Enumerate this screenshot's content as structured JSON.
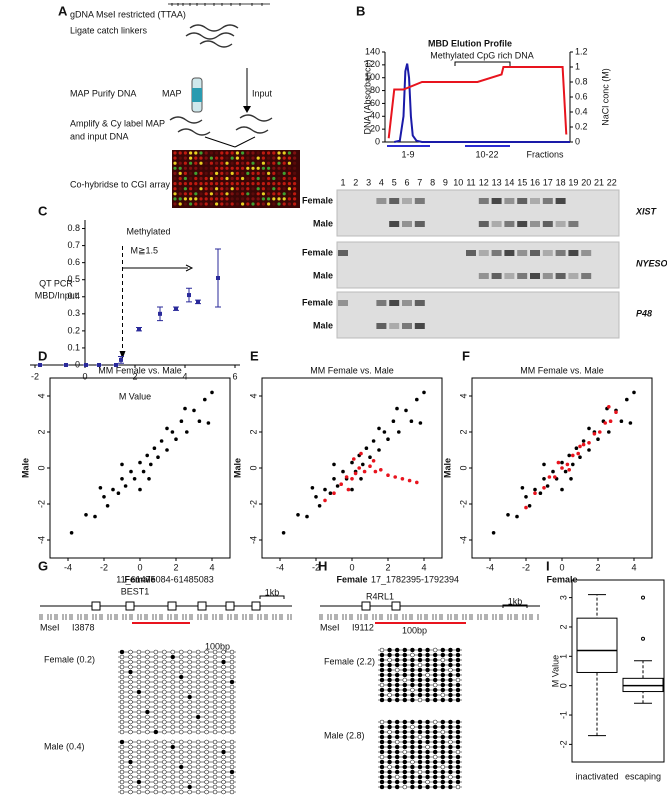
{
  "panel_labels": [
    "A",
    "B",
    "C",
    "D",
    "E",
    "F",
    "G",
    "H",
    "I"
  ],
  "workflow": {
    "digest": "gDNA MseI restricted (TTAA)",
    "ligate": "Ligate catch linkers",
    "purify": "MAP Purify DNA",
    "map": "MAP",
    "input": "Input",
    "amplify": [
      "Amplify & Cy label MAP",
      "and input DNA"
    ],
    "hybridize": "Co-hybridse to CGI array"
  },
  "gel": {
    "lanes": [
      1,
      2,
      3,
      4,
      5,
      6,
      7,
      8,
      9,
      10,
      11,
      12,
      13,
      14,
      15,
      16,
      17,
      18,
      19,
      20,
      21,
      22
    ],
    "genes": [
      {
        "name": "XIST",
        "rows": [
          "Female",
          "Male"
        ]
      },
      {
        "name": "NYESO",
        "rows": [
          "Female",
          "Male"
        ]
      },
      {
        "name": "P48",
        "rows": [
          "Female",
          "Male"
        ]
      }
    ]
  },
  "bisulfite": {
    "G": {
      "locus": "11_61475084-61485083",
      "gene": "BEST1",
      "scale": "1kb",
      "site_label": "MseI",
      "site": "I3878",
      "amplicon_scale": "100bp",
      "groups": [
        "Female (0.2)",
        "Male (0.4)"
      ]
    },
    "H": {
      "locus": "17_1782395-1792394",
      "gene": "R4RL1",
      "scale": "1kb",
      "site_label": "MseI",
      "site": "I9112",
      "amplicon_scale": "100bp",
      "groups": [
        "Female (2.2)",
        "Male (2.8)"
      ]
    }
  },
  "chart_data": [
    {
      "type": "line",
      "title": "MBD Elution Profile",
      "ylabel": "DNA (Absorbance)",
      "y2label": "NaCl conc (M)",
      "xlim": [
        0,
        100
      ],
      "ylim": [
        0,
        140
      ],
      "yticks": [
        0,
        20,
        40,
        60,
        80,
        100,
        120,
        140
      ],
      "y2lim": [
        0,
        1.2
      ],
      "y2ticks": [
        0,
        0.2,
        0.4,
        0.6,
        0.8,
        1,
        1.2
      ],
      "series": [
        {
          "color": "#1a1aa8",
          "x": [
            5,
            8,
            10,
            11,
            12,
            13,
            14,
            15,
            17,
            20,
            100
          ],
          "values": [
            0,
            2,
            40,
            110,
            122,
            100,
            40,
            10,
            2,
            0,
            0
          ]
        },
        {
          "color": "#e8141e",
          "axis": "y2",
          "x": [
            2,
            5,
            10,
            20,
            50,
            63,
            64,
            96,
            98
          ],
          "values": [
            0.05,
            0.7,
            0.7,
            0.8,
            0.8,
            0.9,
            1.0,
            1.0,
            0.1
          ]
        }
      ],
      "annotation": "Methylated CpG rich DNA",
      "fraction_groups": [
        "1-9",
        "10-22"
      ],
      "fractions_label": "Fractions"
    },
    {
      "type": "errorscatter",
      "xlabel": "M Value",
      "ylabel": [
        "QT PCR",
        "MBD/Input"
      ],
      "xlim": [
        -2.2,
        6.2
      ],
      "xticks": [
        -2,
        0,
        2,
        4,
        6
      ],
      "ylim": [
        0,
        0.85
      ],
      "yticks": [
        0,
        0.1,
        0.2,
        0.3,
        0.4,
        0.5,
        0.6,
        0.7,
        0.8
      ],
      "color": "#2a2a9a",
      "x": [
        -1.8,
        -0.76,
        0.04,
        0.56,
        1.24,
        1.44,
        2.16,
        3.0,
        3.64,
        4.16,
        4.52,
        5.32
      ],
      "values": [
        0,
        0,
        0,
        0,
        0,
        0.03,
        0.21,
        0.3,
        0.33,
        0.41,
        0.37,
        0.51
      ],
      "errors": [
        0,
        0,
        0,
        0,
        0,
        0.02,
        0.01,
        0.04,
        0.01,
        0.04,
        0.01,
        0.17
      ],
      "annotation": "Methylated",
      "threshold": {
        "value": 1.5,
        "label": "M≧1.5"
      }
    },
    {
      "type": "scatter",
      "title": "MM Female vs. Male",
      "xlabel": "Female",
      "ylabel": "Male",
      "xlim": [
        -5,
        5
      ],
      "ylim": [
        -5,
        5
      ],
      "xticks": [
        -4,
        -2,
        0,
        2,
        4
      ],
      "yticks": [
        -4,
        -2,
        0,
        2,
        4
      ],
      "series": [
        {
          "color": "#000000",
          "x": [
            -3.8,
            -3,
            -2.5,
            -2,
            -1.8,
            -1.5,
            -1.2,
            -1,
            -0.8,
            -0.5,
            -0.3,
            0,
            0.2,
            0.4,
            0.6,
            0.8,
            1,
            1.2,
            1.5,
            1.8,
            2,
            2.3,
            2.6,
            3,
            3.3,
            3.6,
            4,
            -1,
            0.5,
            1.5,
            2.5,
            0,
            -2.2,
            3.8
          ],
          "values": [
            -3.6,
            -2.6,
            -2.7,
            -1.6,
            -2.1,
            -1.2,
            -1.4,
            -0.6,
            -1,
            -0.2,
            -0.6,
            0.3,
            -0.2,
            0.7,
            0.2,
            1.1,
            0.6,
            1.5,
            1.0,
            2.0,
            1.6,
            2.6,
            2.0,
            3.2,
            2.6,
            3.8,
            4.2,
            0.2,
            -0.6,
            2.2,
            3.3,
            -1.2,
            -1.1,
            2.5
          ]
        }
      ]
    },
    {
      "type": "scatter",
      "title": "MM Female vs. Male",
      "xlabel": "Female",
      "ylabel": "Male",
      "xlim": [
        -5,
        5
      ],
      "ylim": [
        -5,
        5
      ],
      "xticks": [
        -4,
        -2,
        0,
        2,
        4
      ],
      "yticks": [
        -4,
        -2,
        0,
        2,
        4
      ],
      "series": [
        {
          "color": "#000000",
          "x": [
            -3.8,
            -3,
            -2.5,
            -2,
            -1.8,
            -1.5,
            -1.2,
            -1,
            -0.8,
            -0.5,
            -0.3,
            0,
            0.2,
            0.4,
            0.6,
            0.8,
            1,
            1.2,
            1.5,
            1.8,
            2,
            2.3,
            2.6,
            3,
            3.3,
            3.6,
            4,
            -1,
            0.5,
            1.5,
            2.5,
            0,
            -2.2,
            3.8
          ],
          "values": [
            -3.6,
            -2.6,
            -2.7,
            -1.6,
            -2.1,
            -1.2,
            -1.4,
            -0.6,
            -1,
            -0.2,
            -0.6,
            0.3,
            -0.2,
            0.7,
            0.2,
            1.1,
            0.6,
            1.5,
            1.0,
            2.0,
            1.6,
            2.6,
            2.0,
            3.2,
            2.6,
            3.8,
            4.2,
            0.2,
            -0.6,
            2.2,
            3.3,
            -1.2,
            -1.1,
            2.5
          ]
        },
        {
          "color": "#e8141e",
          "x": [
            -1.5,
            -1,
            -0.6,
            -0.3,
            0,
            0.2,
            0.4,
            0.7,
            1,
            1.3,
            1.6,
            2,
            2.4,
            2.8,
            3.2,
            3.6,
            0.1,
            -0.2,
            0.5,
            1.2
          ],
          "values": [
            -1.8,
            -1.4,
            -0.9,
            -0.5,
            -0.6,
            -0.3,
            0,
            -0.2,
            0.1,
            -0.2,
            -0.1,
            -0.4,
            -0.5,
            -0.6,
            -0.7,
            -0.8,
            0.5,
            -1.2,
            0.8,
            0.4
          ]
        }
      ]
    },
    {
      "type": "scatter",
      "title": "MM Female vs. Male",
      "xlabel": "Female",
      "ylabel": "Male",
      "xlim": [
        -5,
        5
      ],
      "ylim": [
        -5,
        5
      ],
      "xticks": [
        -4,
        -2,
        0,
        2,
        4
      ],
      "yticks": [
        -4,
        -2,
        0,
        2,
        4
      ],
      "series": [
        {
          "color": "#000000",
          "x": [
            -3.8,
            -3,
            -2.5,
            -2,
            -1.8,
            -1.5,
            -1.2,
            -1,
            -0.8,
            -0.5,
            -0.3,
            0,
            0.2,
            0.4,
            0.6,
            0.8,
            1,
            1.2,
            1.5,
            1.8,
            2,
            2.3,
            2.6,
            3,
            3.3,
            3.6,
            4,
            -1,
            0.5,
            1.5,
            2.5,
            0,
            -2.2,
            3.8
          ],
          "values": [
            -3.6,
            -2.6,
            -2.7,
            -1.6,
            -2.1,
            -1.2,
            -1.4,
            -0.6,
            -1,
            -0.2,
            -0.6,
            0.3,
            -0.2,
            0.7,
            0.2,
            1.1,
            0.6,
            1.5,
            1.0,
            2.0,
            1.6,
            2.6,
            2.0,
            3.2,
            2.6,
            3.8,
            4.2,
            0.2,
            -0.6,
            2.2,
            3.3,
            -1.2,
            -1.1,
            2.5
          ]
        },
        {
          "color": "#e8141e",
          "x": [
            -2,
            -1.5,
            -1,
            -0.7,
            -0.4,
            0,
            0.3,
            0.6,
            0.9,
            1.2,
            1.5,
            1.8,
            2.1,
            2.4,
            2.7,
            3,
            -0.2,
            0.4,
            1,
            2.6
          ],
          "values": [
            -2.2,
            -1.4,
            -1.1,
            -0.5,
            -0.5,
            0,
            0.2,
            0.7,
            0.8,
            1.3,
            1.4,
            1.9,
            2.0,
            2.5,
            2.6,
            3.1,
            0.3,
            -0.1,
            1.2,
            3.4
          ]
        }
      ]
    },
    {
      "type": "box",
      "ylabel": "M Value",
      "categories": [
        "inactivated",
        "escaping"
      ],
      "ylim": [
        -2.6,
        3.6
      ],
      "yticks": [
        -2,
        -1,
        0,
        1,
        2,
        3
      ],
      "boxes": [
        {
          "min": -1.7,
          "q1": 0.45,
          "median": 1.2,
          "q3": 2.3,
          "max": 3.1,
          "outliers": []
        },
        {
          "min": -0.6,
          "q1": -0.2,
          "median": 0,
          "q3": 0.25,
          "max": 0.85,
          "outliers": [
            3.0,
            1.6
          ]
        }
      ]
    }
  ]
}
